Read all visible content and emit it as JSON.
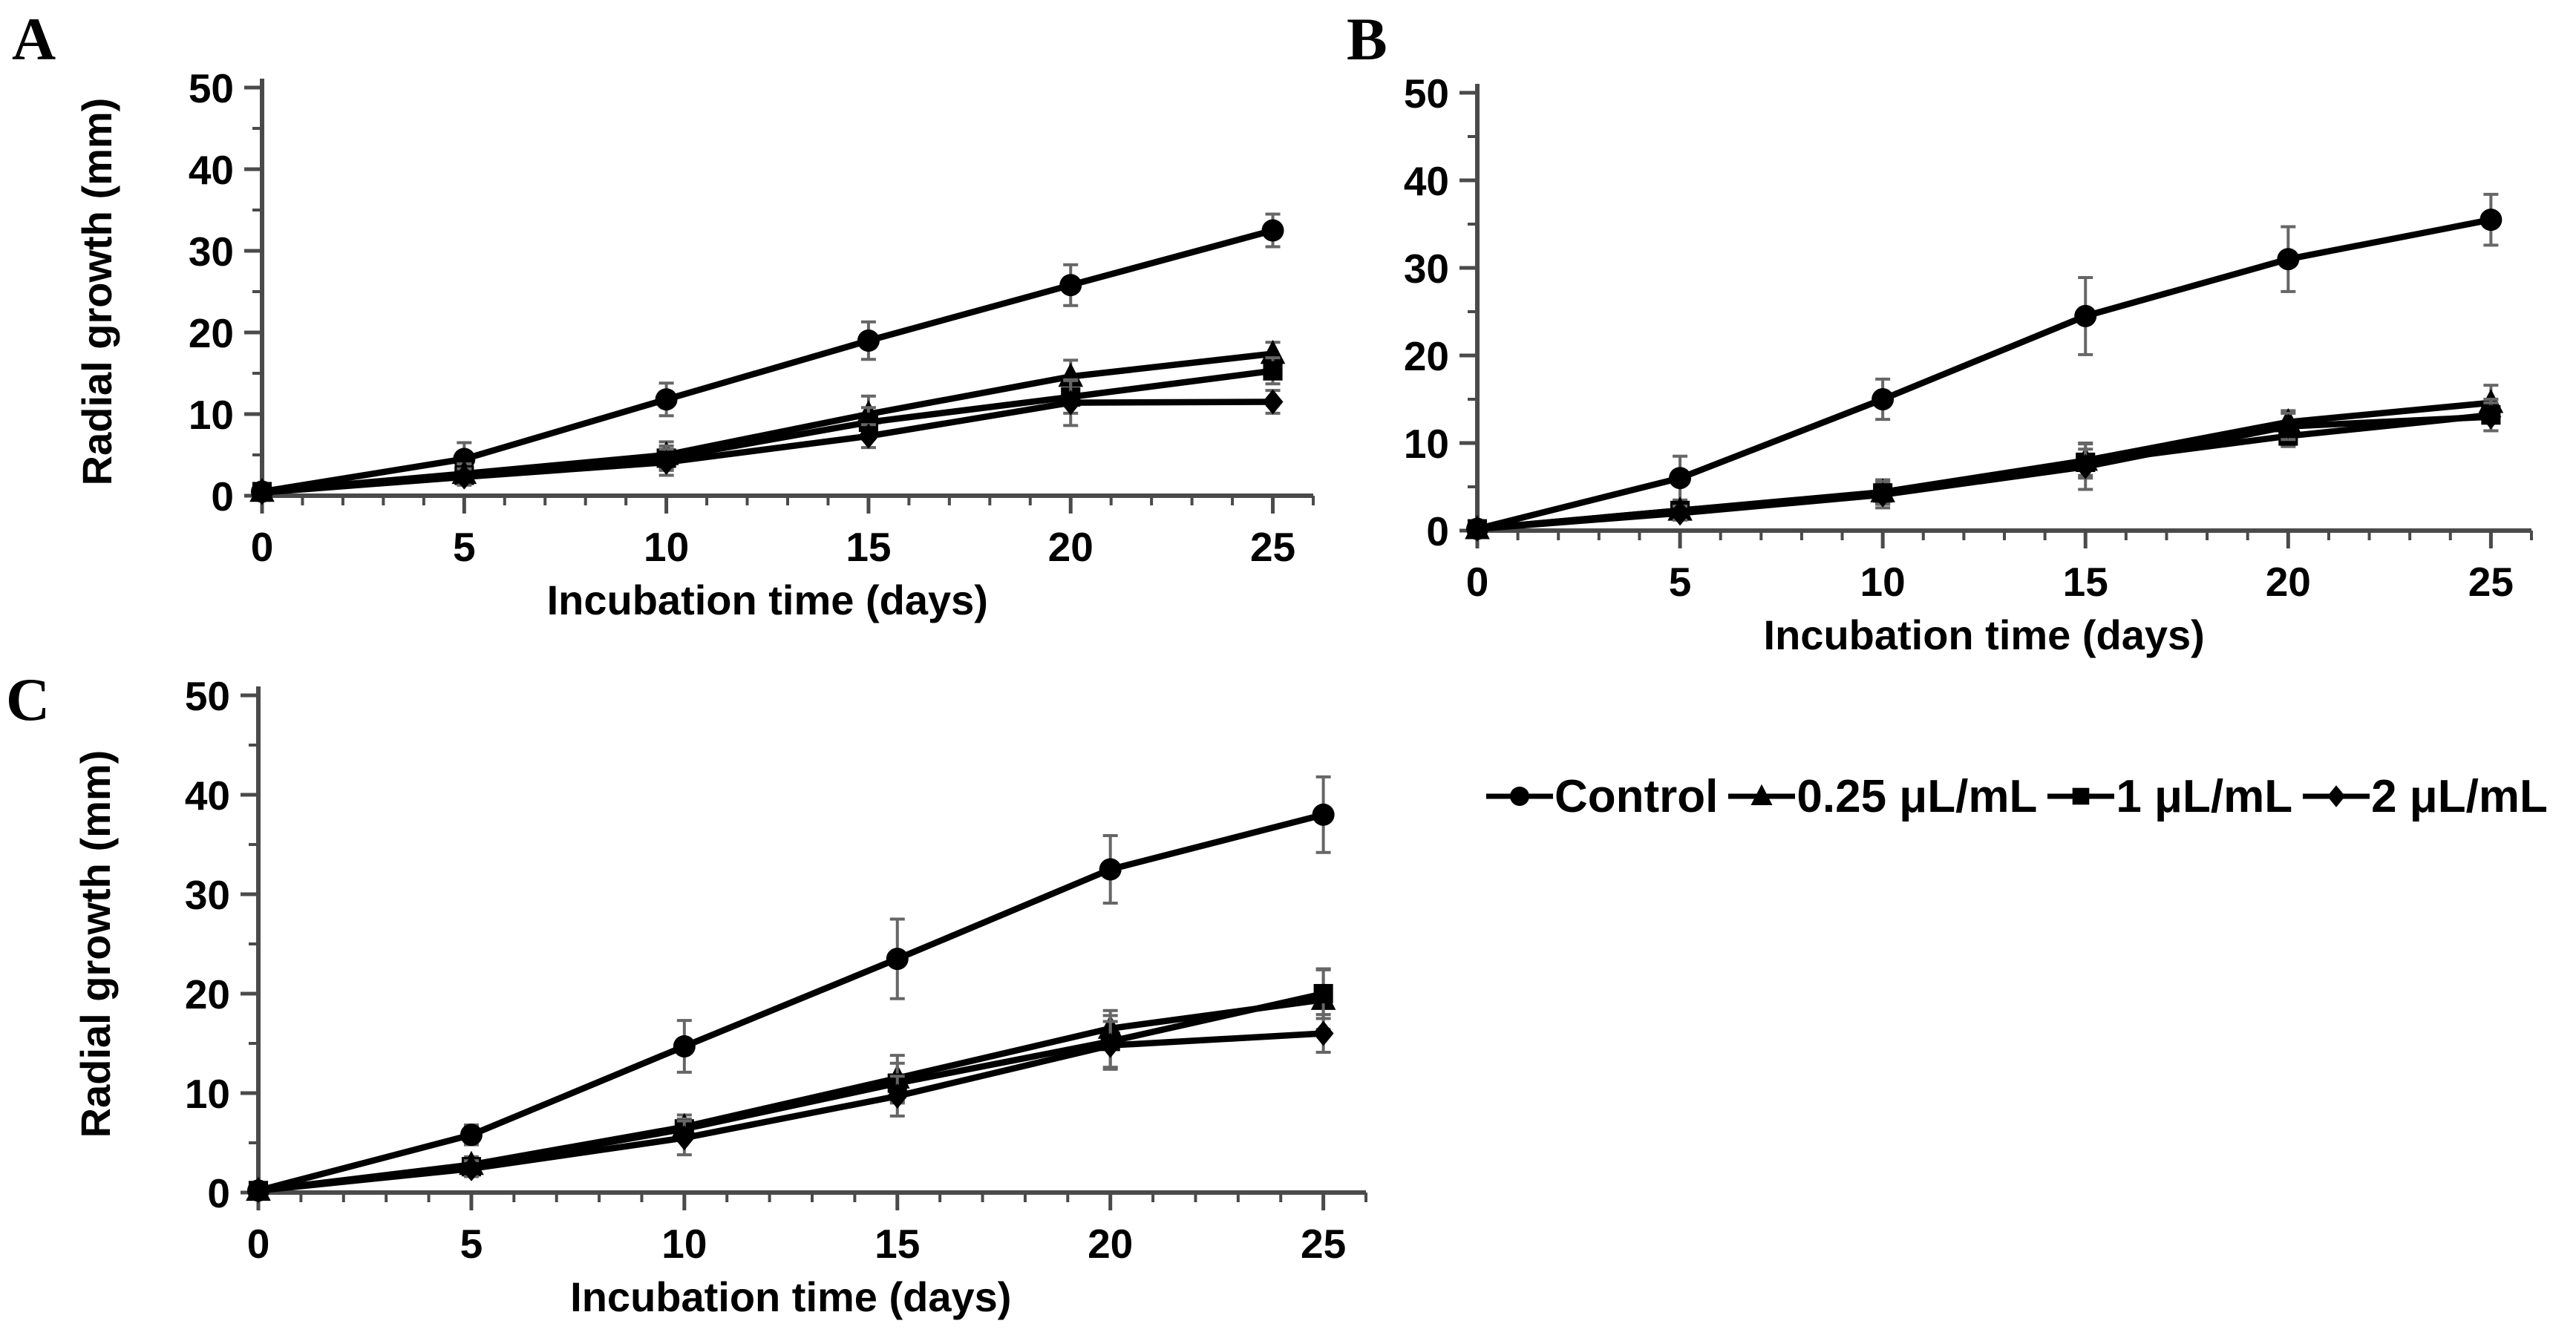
{
  "figure": {
    "background_color": "#ffffff",
    "series_color": "#000000",
    "axis_color": "#4a4a4a",
    "error_bar_color": "#666666",
    "text_color": "#000000"
  },
  "legend": {
    "position": "bottom-right",
    "items": [
      {
        "label": "Control",
        "marker": "circle"
      },
      {
        "label": "0.25 μL/mL",
        "marker": "triangle"
      },
      {
        "label": "1 μL/mL",
        "marker": "square"
      },
      {
        "label": "2 μL/mL",
        "marker": "diamond"
      }
    ]
  },
  "chart_data": [
    {
      "type": "line",
      "panel": "A",
      "xlabel": "Incubation time (days)",
      "ylabel": "Radial growth (mm)",
      "x": [
        0,
        5,
        10,
        15,
        20,
        25
      ],
      "xlim": [
        0,
        26
      ],
      "ylim": [
        0,
        50
      ],
      "xticks": [
        0,
        5,
        10,
        15,
        20,
        25
      ],
      "yticks": [
        0,
        10,
        20,
        30,
        40,
        50
      ],
      "x_minor_step": 1,
      "y_minor_step": 5,
      "grid": false,
      "series": [
        {
          "name": "Control",
          "marker": "circle",
          "values": [
            0.5,
            4.5,
            11.8,
            19.0,
            25.8,
            32.5
          ],
          "errors": [
            0.3,
            2.0,
            2.0,
            2.3,
            2.5,
            2.0
          ]
        },
        {
          "name": "0.25 μL/mL",
          "marker": "triangle",
          "values": [
            0.5,
            2.7,
            5.0,
            10.0,
            14.6,
            17.4
          ],
          "errors": [
            0.3,
            1.2,
            1.6,
            2.2,
            2.0,
            1.4
          ]
        },
        {
          "name": "1 μL/mL",
          "marker": "square",
          "values": [
            0.5,
            2.5,
            4.6,
            9.0,
            12.1,
            15.3
          ],
          "errors": [
            0.3,
            1.0,
            1.5,
            1.8,
            2.0,
            1.6
          ]
        },
        {
          "name": "2 μL/mL",
          "marker": "diamond",
          "values": [
            0.4,
            2.3,
            4.1,
            7.3,
            11.4,
            11.5
          ],
          "errors": [
            0.3,
            1.0,
            1.6,
            1.4,
            2.8,
            1.4
          ]
        }
      ]
    },
    {
      "type": "line",
      "panel": "B",
      "xlabel": "Incubation time (days)",
      "ylabel": "",
      "x": [
        0,
        5,
        10,
        15,
        20,
        25
      ],
      "xlim": [
        0,
        26
      ],
      "ylim": [
        0,
        50
      ],
      "xticks": [
        0,
        5,
        10,
        15,
        20,
        25
      ],
      "yticks": [
        0,
        10,
        20,
        30,
        40,
        50
      ],
      "x_minor_step": 1,
      "y_minor_step": 5,
      "grid": false,
      "series": [
        {
          "name": "Control",
          "marker": "circle",
          "values": [
            0.2,
            6.0,
            15.0,
            24.5,
            31.0,
            35.5
          ],
          "errors": [
            0.2,
            2.5,
            2.3,
            4.4,
            3.7,
            2.9
          ]
        },
        {
          "name": "0.25 μL/mL",
          "marker": "triangle",
          "values": [
            0.2,
            2.3,
            4.4,
            8.0,
            12.4,
            14.6
          ],
          "errors": [
            0.2,
            0.9,
            1.4,
            2.0,
            1.3,
            2.0
          ]
        },
        {
          "name": "1 μL/mL",
          "marker": "square",
          "values": [
            0.2,
            2.3,
            4.3,
            7.8,
            10.8,
            13.2
          ],
          "errors": [
            0.2,
            0.8,
            1.2,
            1.5,
            1.2,
            1.8
          ]
        },
        {
          "name": "2 μL/mL",
          "marker": "diamond",
          "values": [
            0.2,
            2.0,
            4.1,
            7.3,
            11.9,
            13.0
          ],
          "errors": [
            0.2,
            0.8,
            1.5,
            2.6,
            1.5,
            1.6
          ]
        }
      ]
    },
    {
      "type": "line",
      "panel": "C",
      "xlabel": "Incubation time (days)",
      "ylabel": "Radial growth (mm)",
      "x": [
        0,
        5,
        10,
        15,
        20,
        25
      ],
      "xlim": [
        0,
        26
      ],
      "ylim": [
        0,
        50
      ],
      "xticks": [
        0,
        5,
        10,
        15,
        20,
        25
      ],
      "yticks": [
        0,
        10,
        20,
        30,
        40,
        50
      ],
      "x_minor_step": 1,
      "y_minor_step": 5,
      "grid": false,
      "series": [
        {
          "name": "Control",
          "marker": "circle",
          "values": [
            0.2,
            5.8,
            14.7,
            23.5,
            32.5,
            38.0
          ],
          "errors": [
            0.2,
            1.0,
            2.6,
            4.0,
            3.4,
            3.8
          ]
        },
        {
          "name": "0.25 μL/mL",
          "marker": "triangle",
          "values": [
            0.2,
            2.8,
            6.6,
            11.5,
            16.5,
            19.4
          ],
          "errors": [
            0.2,
            0.8,
            1.2,
            2.3,
            1.8,
            3.0
          ]
        },
        {
          "name": "1 μL/mL",
          "marker": "square",
          "values": [
            0.2,
            2.6,
            6.4,
            11.0,
            15.2,
            20.0
          ],
          "errors": [
            0.2,
            0.8,
            1.0,
            2.0,
            2.6,
            2.5
          ]
        },
        {
          "name": "2 μL/mL",
          "marker": "diamond",
          "values": [
            0.2,
            2.4,
            5.5,
            9.7,
            14.8,
            16.0
          ],
          "errors": [
            0.2,
            0.8,
            1.7,
            2.0,
            2.4,
            1.9
          ]
        }
      ]
    }
  ]
}
